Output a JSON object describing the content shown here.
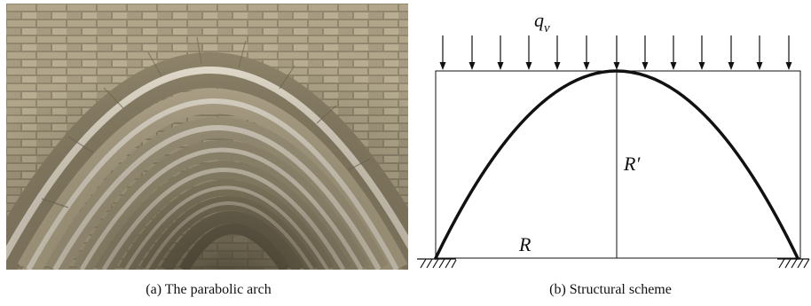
{
  "panel_a": {
    "caption": "(a) The parabolic arch"
  },
  "panel_b": {
    "caption": "(b) Structural scheme",
    "load_label": "q",
    "load_label_subscript": "v",
    "height_label": "R′",
    "span_label": "R"
  },
  "colors": {
    "photo_stone": "#a89f8a",
    "photo_mortar": "#efe9dd",
    "photo_shadow": "#4a4436",
    "line": "#111111"
  }
}
